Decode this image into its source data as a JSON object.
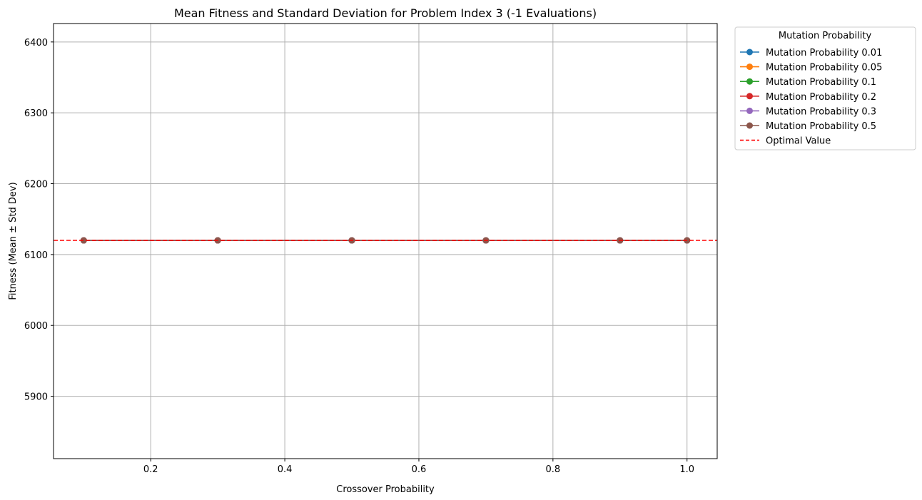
{
  "chart_data": {
    "type": "line",
    "title": "Mean Fitness and Standard Deviation for Problem Index 3 (-1 Evaluations)",
    "xlabel": "Crossover Probability",
    "ylabel": "Fitness (Mean ± Std Dev)",
    "xlim": [
      0.055,
      1.045
    ],
    "ylim": [
      5812,
      6426
    ],
    "x_ticks": [
      0.2,
      0.4,
      0.6,
      0.8,
      1.0
    ],
    "x_tick_labels": [
      "0.2",
      "0.4",
      "0.6",
      "0.8",
      "1.0"
    ],
    "y_ticks": [
      5900,
      6000,
      6100,
      6200,
      6300,
      6400
    ],
    "y_tick_labels": [
      "5900",
      "6000",
      "6100",
      "6200",
      "6300",
      "6400"
    ],
    "grid": true,
    "x": [
      0.1,
      0.3,
      0.5,
      0.7,
      0.9,
      1.0
    ],
    "series": [
      {
        "name": "Mutation Probability 0.01",
        "color": "#1f77b4",
        "values": [
          6120,
          6120,
          6120,
          6120,
          6120,
          6120
        ]
      },
      {
        "name": "Mutation Probability 0.05",
        "color": "#ff7f0e",
        "values": [
          6120,
          6120,
          6120,
          6120,
          6120,
          6120
        ]
      },
      {
        "name": "Mutation Probability 0.1",
        "color": "#2ca02c",
        "values": [
          6120,
          6120,
          6120,
          6120,
          6120,
          6120
        ]
      },
      {
        "name": "Mutation Probability 0.2",
        "color": "#d62728",
        "values": [
          6120,
          6120,
          6120,
          6120,
          6120,
          6120
        ]
      },
      {
        "name": "Mutation Probability 0.3",
        "color": "#9467bd",
        "values": [
          6120,
          6120,
          6120,
          6120,
          6120,
          6120
        ]
      },
      {
        "name": "Mutation Probability 0.5",
        "color": "#8c564b",
        "values": [
          6120,
          6120,
          6120,
          6120,
          6120,
          6120
        ]
      }
    ],
    "reference_line": {
      "name": "Optimal Value",
      "value": 6120,
      "color": "#ff0000",
      "style": "dashed"
    },
    "legend": {
      "title": "Mutation Probability",
      "placement": "outside-top-right"
    }
  }
}
